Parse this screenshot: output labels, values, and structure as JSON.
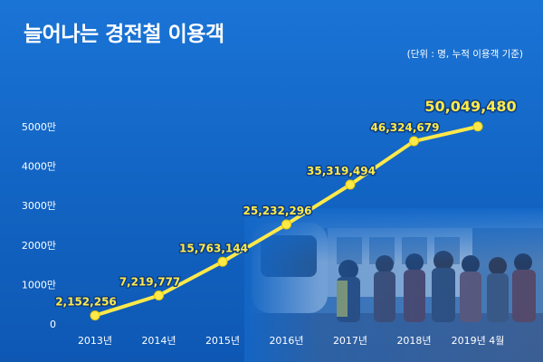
{
  "header": {
    "title": "늘어나는 경전철 이용객",
    "unit_note": "(단위 : 명, 누적 이용객 기준)"
  },
  "colors": {
    "background": "#1468c8",
    "line": "#ffe94a",
    "point": "#ffe94a",
    "label": "#ffe94a",
    "text": "#ffffff"
  },
  "chart_data": {
    "type": "line",
    "title": "늘어나는 경전철 이용객",
    "subtitle": "(단위 : 명, 누적 이용객 기준)",
    "xlabel": "",
    "ylabel": "",
    "categories": [
      "2013년",
      "2014년",
      "2015년",
      "2016년",
      "2017년",
      "2018년",
      "2019년 4월"
    ],
    "series": [
      {
        "values": [
          2152256,
          7219777,
          15763144,
          25232296,
          35319494,
          46324679,
          50049480
        ],
        "labels": [
          "2,152,256",
          "7,219,777",
          "15,763,144",
          "25,232,296",
          "35,319,494",
          "46,324,679",
          "50,049,480"
        ]
      }
    ],
    "y_ticks": [
      0,
      10000000,
      20000000,
      30000000,
      40000000,
      50000000
    ],
    "y_tick_labels": [
      "0",
      "1000만",
      "2000만",
      "3000만",
      "4000만",
      "5000만"
    ],
    "ylim": [
      0,
      50000000
    ],
    "grid": false,
    "legend": "none",
    "background_image": "light-rail-train-station-photo"
  }
}
